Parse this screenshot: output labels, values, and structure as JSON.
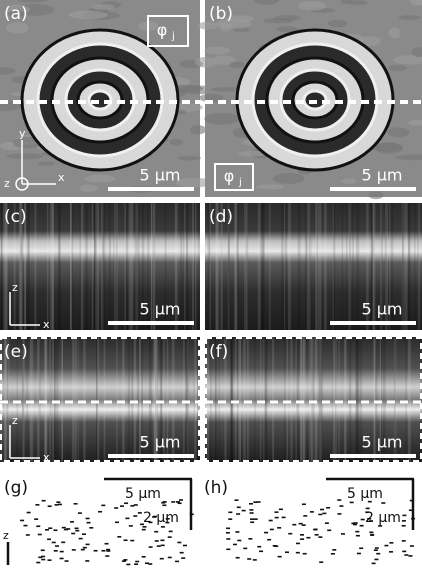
{
  "panels": {
    "a": {
      "label": "(a)",
      "scale": "5 µm",
      "phi": "φ",
      "phi_sub": "j",
      "axis_y": "y",
      "axis_z": "z",
      "axis_x": "x"
    },
    "b": {
      "label": "(b)",
      "scale": "5 µm",
      "phi": "φ",
      "phi_sub": "j"
    },
    "c": {
      "label": "(c)",
      "scale": "5 µm",
      "axis_z": "z",
      "axis_x": "x"
    },
    "d": {
      "label": "(d)",
      "scale": "5 µm"
    },
    "e": {
      "label": "(e)",
      "scale": "5 µm",
      "axis_z": "z",
      "axis_x": "x"
    },
    "f": {
      "label": "(f)",
      "scale": "5 µm"
    },
    "g": {
      "label": "(g)",
      "scale_h": "5 µm",
      "scale_v": "2 µm",
      "axis_z": "z"
    },
    "h": {
      "label": "(h)",
      "scale_h": "5 µm",
      "scale_v": "2 µm"
    }
  }
}
